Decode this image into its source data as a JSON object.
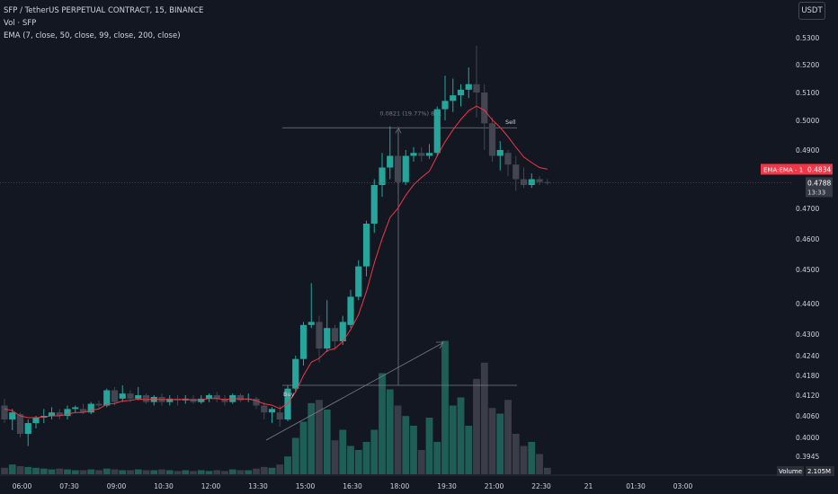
{
  "header": {
    "title": "SFP / TetherUS PERPETUAL CONTRACT, 15, BINANCE",
    "volume_label": "Vol · SFP",
    "ema_label": "EMA (7, close, 50, close, 99, close, 200, close)",
    "currency_button": "USDT"
  },
  "badges": {
    "ema": {
      "label": "EMA:EMA - 1",
      "value": "0.4834"
    },
    "last_price": {
      "value": "0.4788",
      "countdown": "13:33"
    },
    "volume": {
      "label": "Volume",
      "value": "2.105M"
    }
  },
  "colors": {
    "background": "#131722",
    "up": "#26a69a",
    "down": "#434651",
    "ema": "#f23645",
    "text": "#d1d4dc",
    "measure": "#787b86"
  },
  "annotations": {
    "measure_label": "0.0821 (19.77%) 821",
    "buy": "Buy",
    "sell": "Sell"
  },
  "chart_data": {
    "type": "candlestick",
    "y_axis": {
      "ticks": [
        0.53,
        0.52,
        0.51,
        0.5,
        0.49,
        0.47,
        0.46,
        0.45,
        0.44,
        0.43,
        0.424,
        0.418,
        0.412,
        0.406,
        0.4,
        0.3945
      ],
      "tick_labels": [
        "0.5300",
        "0.5200",
        "0.5100",
        "0.5000",
        "0.4900",
        "0.4700",
        "0.4600",
        "0.4500",
        "0.4400",
        "0.4300",
        "0.4240",
        "0.4180",
        "0.4120",
        "0.4060",
        "0.4000",
        "0.3945"
      ],
      "scale": "log"
    },
    "x_axis": {
      "tick_labels": [
        "06:00",
        "07:30",
        "09:00",
        "10:30",
        "12:00",
        "13:30",
        "15:00",
        "16:30",
        "18:00",
        "19:30",
        "21:00",
        "22:30",
        "21",
        "01:30",
        "03:00"
      ]
    },
    "candles": [
      {
        "o": 0.409,
        "h": 0.411,
        "l": 0.404,
        "c": 0.405
      },
      {
        "o": 0.405,
        "h": 0.408,
        "l": 0.402,
        "c": 0.407
      },
      {
        "o": 0.4065,
        "h": 0.407,
        "l": 0.4,
        "c": 0.401
      },
      {
        "o": 0.401,
        "h": 0.405,
        "l": 0.3975,
        "c": 0.404
      },
      {
        "o": 0.404,
        "h": 0.406,
        "l": 0.4025,
        "c": 0.4055
      },
      {
        "o": 0.4055,
        "h": 0.408,
        "l": 0.404,
        "c": 0.406
      },
      {
        "o": 0.406,
        "h": 0.4085,
        "l": 0.405,
        "c": 0.407
      },
      {
        "o": 0.407,
        "h": 0.408,
        "l": 0.405,
        "c": 0.406
      },
      {
        "o": 0.406,
        "h": 0.409,
        "l": 0.405,
        "c": 0.408
      },
      {
        "o": 0.408,
        "h": 0.409,
        "l": 0.407,
        "c": 0.4085
      },
      {
        "o": 0.408,
        "h": 0.4095,
        "l": 0.4065,
        "c": 0.407
      },
      {
        "o": 0.407,
        "h": 0.41,
        "l": 0.4065,
        "c": 0.4095
      },
      {
        "o": 0.4095,
        "h": 0.4105,
        "l": 0.408,
        "c": 0.409
      },
      {
        "o": 0.409,
        "h": 0.414,
        "l": 0.4085,
        "c": 0.4135
      },
      {
        "o": 0.4135,
        "h": 0.4145,
        "l": 0.409,
        "c": 0.41
      },
      {
        "o": 0.411,
        "h": 0.415,
        "l": 0.41,
        "c": 0.4125
      },
      {
        "o": 0.4125,
        "h": 0.4135,
        "l": 0.41,
        "c": 0.411
      },
      {
        "o": 0.411,
        "h": 0.4145,
        "l": 0.4105,
        "c": 0.412
      },
      {
        "o": 0.412,
        "h": 0.4125,
        "l": 0.4095,
        "c": 0.41
      },
      {
        "o": 0.41,
        "h": 0.412,
        "l": 0.409,
        "c": 0.4115
      },
      {
        "o": 0.4115,
        "h": 0.4125,
        "l": 0.409,
        "c": 0.41
      },
      {
        "o": 0.41,
        "h": 0.412,
        "l": 0.409,
        "c": 0.411
      },
      {
        "o": 0.411,
        "h": 0.412,
        "l": 0.409,
        "c": 0.4105
      },
      {
        "o": 0.4105,
        "h": 0.412,
        "l": 0.4095,
        "c": 0.411
      },
      {
        "o": 0.411,
        "h": 0.412,
        "l": 0.4095,
        "c": 0.41
      },
      {
        "o": 0.41,
        "h": 0.412,
        "l": 0.4095,
        "c": 0.411
      },
      {
        "o": 0.411,
        "h": 0.4125,
        "l": 0.41,
        "c": 0.412
      },
      {
        "o": 0.412,
        "h": 0.413,
        "l": 0.41,
        "c": 0.411
      },
      {
        "o": 0.411,
        "h": 0.412,
        "l": 0.409,
        "c": 0.41
      },
      {
        "o": 0.41,
        "h": 0.4125,
        "l": 0.4095,
        "c": 0.412
      },
      {
        "o": 0.412,
        "h": 0.4125,
        "l": 0.41,
        "c": 0.4105
      },
      {
        "o": 0.411,
        "h": 0.4125,
        "l": 0.41,
        "c": 0.411
      },
      {
        "o": 0.411,
        "h": 0.4115,
        "l": 0.408,
        "c": 0.409
      },
      {
        "o": 0.409,
        "h": 0.41,
        "l": 0.405,
        "c": 0.407
      },
      {
        "o": 0.407,
        "h": 0.4085,
        "l": 0.404,
        "c": 0.408
      },
      {
        "o": 0.407,
        "h": 0.409,
        "l": 0.403,
        "c": 0.405
      },
      {
        "o": 0.405,
        "h": 0.415,
        "l": 0.4045,
        "c": 0.414
      },
      {
        "o": 0.414,
        "h": 0.424,
        "l": 0.413,
        "c": 0.423
      },
      {
        "o": 0.423,
        "h": 0.434,
        "l": 0.421,
        "c": 0.433
      },
      {
        "o": 0.433,
        "h": 0.446,
        "l": 0.432,
        "c": 0.434
      },
      {
        "o": 0.434,
        "h": 0.436,
        "l": 0.422,
        "c": 0.426
      },
      {
        "o": 0.426,
        "h": 0.441,
        "l": 0.425,
        "c": 0.432
      },
      {
        "o": 0.432,
        "h": 0.433,
        "l": 0.426,
        "c": 0.428
      },
      {
        "o": 0.428,
        "h": 0.436,
        "l": 0.427,
        "c": 0.434
      },
      {
        "o": 0.433,
        "h": 0.444,
        "l": 0.432,
        "c": 0.442
      },
      {
        "o": 0.442,
        "h": 0.453,
        "l": 0.441,
        "c": 0.451
      },
      {
        "o": 0.451,
        "h": 0.466,
        "l": 0.448,
        "c": 0.465
      },
      {
        "o": 0.465,
        "h": 0.48,
        "l": 0.462,
        "c": 0.478
      },
      {
        "o": 0.478,
        "h": 0.489,
        "l": 0.474,
        "c": 0.484
      },
      {
        "o": 0.484,
        "h": 0.498,
        "l": 0.48,
        "c": 0.488
      },
      {
        "o": 0.488,
        "h": 0.498,
        "l": 0.475,
        "c": 0.479
      },
      {
        "o": 0.479,
        "h": 0.49,
        "l": 0.478,
        "c": 0.488
      },
      {
        "o": 0.488,
        "h": 0.491,
        "l": 0.486,
        "c": 0.489
      },
      {
        "o": 0.489,
        "h": 0.491,
        "l": 0.486,
        "c": 0.488
      },
      {
        "o": 0.488,
        "h": 0.492,
        "l": 0.487,
        "c": 0.489
      },
      {
        "o": 0.489,
        "h": 0.505,
        "l": 0.488,
        "c": 0.504
      },
      {
        "o": 0.504,
        "h": 0.516,
        "l": 0.5,
        "c": 0.507
      },
      {
        "o": 0.507,
        "h": 0.515,
        "l": 0.503,
        "c": 0.509
      },
      {
        "o": 0.509,
        "h": 0.513,
        "l": 0.505,
        "c": 0.511
      },
      {
        "o": 0.511,
        "h": 0.519,
        "l": 0.508,
        "c": 0.513
      },
      {
        "o": 0.513,
        "h": 0.527,
        "l": 0.501,
        "c": 0.51
      },
      {
        "o": 0.51,
        "h": 0.513,
        "l": 0.49,
        "c": 0.499
      },
      {
        "o": 0.499,
        "h": 0.501,
        "l": 0.486,
        "c": 0.488
      },
      {
        "o": 0.488,
        "h": 0.493,
        "l": 0.483,
        "c": 0.49
      },
      {
        "o": 0.489,
        "h": 0.49,
        "l": 0.481,
        "c": 0.485
      },
      {
        "o": 0.485,
        "h": 0.488,
        "l": 0.476,
        "c": 0.48
      },
      {
        "o": 0.48,
        "h": 0.484,
        "l": 0.477,
        "c": 0.478
      },
      {
        "o": 0.478,
        "h": 0.482,
        "l": 0.477,
        "c": 0.48
      },
      {
        "o": 0.48,
        "h": 0.481,
        "l": 0.478,
        "c": 0.479
      },
      {
        "o": 0.479,
        "h": 0.48,
        "l": 0.478,
        "c": 0.4788
      }
    ],
    "volume": [
      0.08,
      0.12,
      0.1,
      0.09,
      0.08,
      0.07,
      0.06,
      0.07,
      0.06,
      0.05,
      0.05,
      0.06,
      0.05,
      0.07,
      0.06,
      0.05,
      0.05,
      0.06,
      0.05,
      0.05,
      0.06,
      0.05,
      0.04,
      0.05,
      0.04,
      0.05,
      0.04,
      0.05,
      0.04,
      0.06,
      0.05,
      0.05,
      0.07,
      0.09,
      0.08,
      0.12,
      0.22,
      0.45,
      0.65,
      0.88,
      0.92,
      0.8,
      0.42,
      0.55,
      0.35,
      0.3,
      0.4,
      0.55,
      1.25,
      1.05,
      0.85,
      0.72,
      0.6,
      0.3,
      0.7,
      0.4,
      1.65,
      0.85,
      0.95,
      0.6,
      1.18,
      1.38,
      0.82,
      0.75,
      0.92,
      0.5,
      0.35,
      0.4,
      0.25,
      0.08
    ],
    "ema": [
      0.408,
      0.4075,
      0.406,
      0.4055,
      0.4055,
      0.4057,
      0.406,
      0.406,
      0.4065,
      0.407,
      0.407,
      0.4076,
      0.408,
      0.4094,
      0.4096,
      0.4103,
      0.4105,
      0.4109,
      0.4107,
      0.4109,
      0.4107,
      0.4108,
      0.4107,
      0.4108,
      0.4106,
      0.4107,
      0.411,
      0.411,
      0.4107,
      0.411,
      0.4109,
      0.4109,
      0.4104,
      0.4095,
      0.4091,
      0.4081,
      0.4096,
      0.413,
      0.418,
      0.422,
      0.4232,
      0.4254,
      0.426,
      0.428,
      0.4315,
      0.4364,
      0.4435,
      0.4521,
      0.4601,
      0.467,
      0.47,
      0.4745,
      0.4781,
      0.4806,
      0.4827,
      0.488,
      0.4928,
      0.4968,
      0.5003,
      0.5035,
      0.5051,
      0.5036,
      0.5002,
      0.4976,
      0.4945,
      0.4909,
      0.4876,
      0.4857,
      0.484,
      0.4834
    ],
    "x_tick_candle_index": [
      2,
      8,
      14,
      20,
      26,
      32,
      38,
      44,
      50,
      56,
      62,
      68,
      74,
      80,
      86
    ]
  }
}
